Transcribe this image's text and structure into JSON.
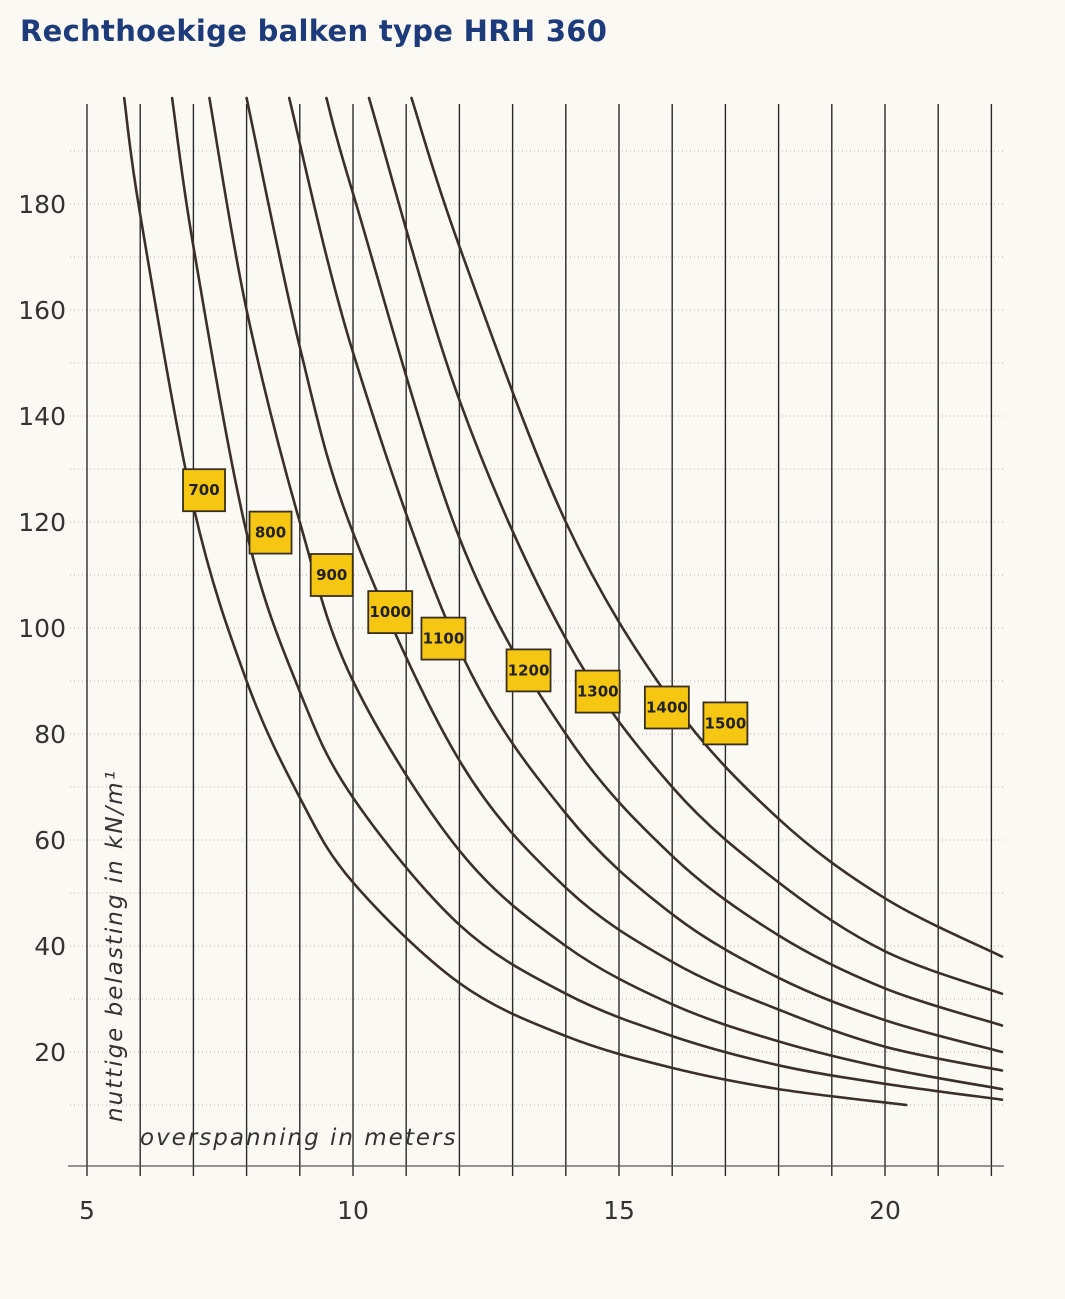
{
  "title": "Rechthoekige balken type HRH 360",
  "chart_data": {
    "type": "line",
    "title": "Rechthoekige balken type HRH 360",
    "xlabel": "overspanning in meters",
    "ylabel": "nuttige belasting in kN/m¹",
    "xlim": [
      5,
      22.2
    ],
    "ylim": [
      0,
      200
    ],
    "x_ticks": [
      "5",
      "10",
      "15",
      "20"
    ],
    "y_ticks": [
      "20",
      "40",
      "60",
      "80",
      "100",
      "120",
      "140",
      "160",
      "180"
    ],
    "grid": true,
    "series": [
      {
        "name": "700",
        "x": [
          5.7,
          6,
          7,
          8,
          9,
          10,
          12,
          14,
          16,
          18,
          20.4
        ],
        "y": [
          200,
          178,
          123,
          90,
          68,
          52,
          33,
          23,
          17,
          13,
          10
        ]
      },
      {
        "name": "800",
        "x": [
          6.6,
          7,
          8,
          9,
          10,
          12,
          14,
          16,
          18,
          20,
          22.2
        ],
        "y": [
          200,
          172,
          118,
          88,
          68,
          44,
          31,
          23,
          17.5,
          14,
          11
        ]
      },
      {
        "name": "900",
        "x": [
          7.3,
          8,
          9,
          10,
          12,
          14,
          16,
          18,
          20,
          22.2
        ],
        "y": [
          200,
          160,
          120,
          90,
          58,
          40,
          29,
          22,
          17,
          13
        ]
      },
      {
        "name": "1000",
        "x": [
          8.0,
          9,
          10,
          12,
          14,
          16,
          18,
          20,
          22.2
        ],
        "y": [
          200,
          153,
          118,
          75,
          51,
          37,
          28,
          21,
          16.5
        ]
      },
      {
        "name": "1100",
        "x": [
          8.8,
          10,
          12,
          14,
          16,
          18,
          20,
          22.2
        ],
        "y": [
          200,
          152,
          96,
          65,
          46,
          34,
          26,
          20
        ]
      },
      {
        "name": "1200",
        "x": [
          9.5,
          10,
          12,
          14,
          16,
          18,
          20,
          22.2
        ],
        "y": [
          200,
          182,
          117,
          80,
          57,
          42,
          32,
          25
        ]
      },
      {
        "name": "1300",
        "x": [
          10.3,
          12,
          14,
          16,
          18,
          20,
          22.2
        ],
        "y": [
          200,
          143,
          98,
          70,
          52,
          39,
          31
        ]
      },
      {
        "name": "1400",
        "x": [
          11.1,
          12,
          14,
          16,
          18,
          20,
          22.2
        ],
        "y": [
          200,
          172,
          120,
          86,
          64,
          49,
          38
        ]
      }
    ],
    "curve_labels": [
      {
        "text": "700",
        "x": 7.2,
        "y": 126
      },
      {
        "text": "800",
        "x": 8.45,
        "y": 118
      },
      {
        "text": "900",
        "x": 9.6,
        "y": 110
      },
      {
        "text": "1000",
        "x": 10.7,
        "y": 103
      },
      {
        "text": "1100",
        "x": 11.7,
        "y": 98
      },
      {
        "text": "1200",
        "x": 13.3,
        "y": 92
      },
      {
        "text": "1300",
        "x": 14.6,
        "y": 88
      },
      {
        "text": "1400",
        "x": 15.9,
        "y": 85
      },
      {
        "text": "1500",
        "x": 17.0,
        "y": 82
      }
    ],
    "colors": {
      "curve": "#3b2f2a",
      "grid": "#2a2a2a",
      "label_fill": "#f5c713",
      "title": "#1d3a7a"
    }
  }
}
